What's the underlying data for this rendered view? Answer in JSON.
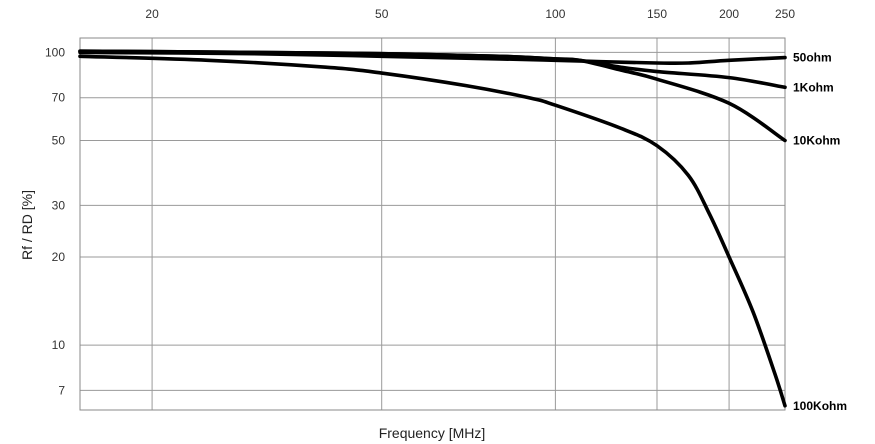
{
  "chart_data": {
    "type": "line",
    "title": "",
    "xlabel": "Frequency [MHz]",
    "ylabel": "Rf / RD [%]",
    "xscale": "log",
    "yscale": "log",
    "xlim": [
      15,
      250
    ],
    "ylim": [
      6,
      112
    ],
    "xticks": [
      20,
      50,
      100,
      150,
      200,
      250
    ],
    "yticks": [
      7,
      10,
      20,
      30,
      50,
      70,
      100
    ],
    "xtick_position": "top",
    "grid": true,
    "legend": "labels at right end of each curve",
    "line_color": "#000000",
    "series": [
      {
        "name": "50ohm",
        "points": [
          [
            15,
            100
          ],
          [
            30,
            99
          ],
          [
            50,
            97
          ],
          [
            80,
            95
          ],
          [
            100,
            94
          ],
          [
            120,
            93
          ],
          [
            150,
            92
          ],
          [
            170,
            92
          ],
          [
            200,
            94
          ],
          [
            250,
            96
          ]
        ]
      },
      {
        "name": "1Kohm",
        "points": [
          [
            15,
            101
          ],
          [
            30,
            100
          ],
          [
            50,
            99
          ],
          [
            80,
            97
          ],
          [
            100,
            95
          ],
          [
            110,
            94
          ],
          [
            130,
            89
          ],
          [
            150,
            86
          ],
          [
            200,
            82
          ],
          [
            250,
            76
          ]
        ]
      },
      {
        "name": "10Kohm",
        "points": [
          [
            15,
            101
          ],
          [
            30,
            100
          ],
          [
            50,
            99
          ],
          [
            80,
            97
          ],
          [
            100,
            95
          ],
          [
            110,
            94
          ],
          [
            130,
            87
          ],
          [
            150,
            81
          ],
          [
            200,
            67
          ],
          [
            250,
            50
          ]
        ]
      },
      {
        "name": "100Kohm",
        "points": [
          [
            15,
            97
          ],
          [
            25,
            94
          ],
          [
            40,
            89
          ],
          [
            50,
            85
          ],
          [
            70,
            77
          ],
          [
            90,
            70
          ],
          [
            100,
            66
          ],
          [
            130,
            55
          ],
          [
            150,
            48
          ],
          [
            170,
            38
          ],
          [
            185,
            28
          ],
          [
            200,
            20
          ],
          [
            220,
            13
          ],
          [
            240,
            8
          ],
          [
            250,
            6.2
          ]
        ]
      }
    ]
  }
}
